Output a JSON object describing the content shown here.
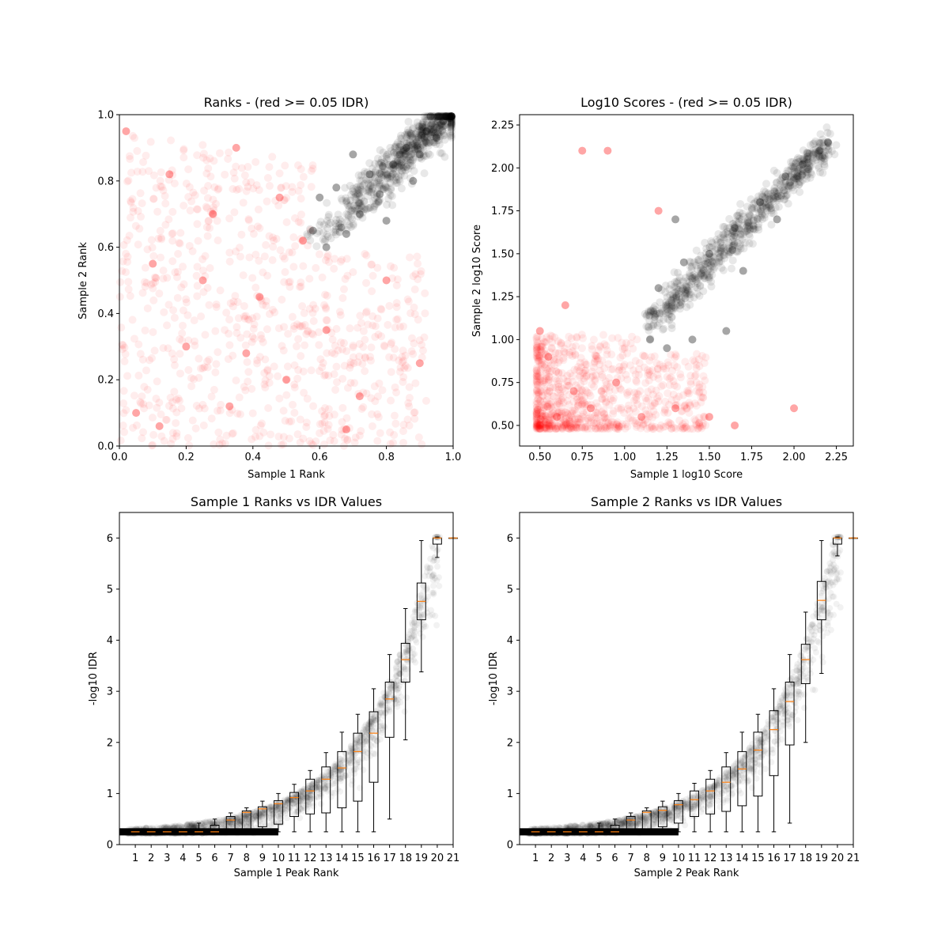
{
  "chart_data": [
    {
      "type": "scatter",
      "title": "Ranks - (red >= 0.05 IDR)",
      "xlabel": "Sample 1 Rank",
      "ylabel": "Sample 2 Rank",
      "xlim": [
        0,
        1
      ],
      "ylim": [
        0,
        1
      ],
      "x_ticks": [
        0.0,
        0.2,
        0.4,
        0.6,
        0.8,
        1.0
      ],
      "y_ticks": [
        0.0,
        0.2,
        0.4,
        0.6,
        0.8,
        1.0
      ],
      "x_tick_labels": [
        "0.0",
        "0.2",
        "0.4",
        "0.6",
        "0.8",
        "1.0"
      ],
      "y_tick_labels": [
        "0.0",
        "0.2",
        "0.4",
        "0.6",
        "0.8",
        "1.0"
      ],
      "colors": {
        "fail": "#ff0000",
        "pass": "#000000"
      },
      "series": [
        {
          "color": "#ff0000",
          "values": [
            [
              0.05,
              0.1
            ],
            [
              0.12,
              0.06
            ],
            [
              0.2,
              0.3
            ],
            [
              0.33,
              0.12
            ],
            [
              0.42,
              0.45
            ],
            [
              0.5,
              0.2
            ],
            [
              0.28,
              0.7
            ],
            [
              0.1,
              0.55
            ],
            [
              0.62,
              0.35
            ],
            [
              0.72,
              0.15
            ],
            [
              0.55,
              0.62
            ],
            [
              0.8,
              0.5
            ],
            [
              0.15,
              0.82
            ],
            [
              0.35,
              0.9
            ],
            [
              0.02,
              0.95
            ],
            [
              0.48,
              0.75
            ],
            [
              0.9,
              0.25
            ],
            [
              0.68,
              0.05
            ],
            [
              0.25,
              0.5
            ],
            [
              0.38,
              0.28
            ]
          ]
        },
        {
          "color": "#000000",
          "values": [
            [
              0.58,
              0.65
            ],
            [
              0.62,
              0.6
            ],
            [
              0.68,
              0.64
            ],
            [
              0.65,
              0.78
            ],
            [
              0.72,
              0.7
            ],
            [
              0.75,
              0.82
            ],
            [
              0.8,
              0.68
            ],
            [
              0.82,
              0.85
            ],
            [
              0.86,
              0.9
            ],
            [
              0.9,
              0.88
            ],
            [
              0.92,
              0.95
            ],
            [
              0.95,
              0.93
            ],
            [
              0.97,
              0.98
            ],
            [
              0.99,
              0.99
            ],
            [
              0.6,
              0.75
            ],
            [
              0.78,
              0.76
            ],
            [
              0.88,
              0.8
            ],
            [
              0.7,
              0.88
            ]
          ]
        }
      ]
    },
    {
      "type": "scatter",
      "title": "Log10 Scores - (red >= 0.05 IDR)",
      "xlabel": "Sample 1 log10 Score",
      "ylabel": "Sample 2 log10 Score",
      "xlim": [
        0.38,
        2.35
      ],
      "ylim": [
        0.38,
        2.31
      ],
      "x_ticks": [
        0.5,
        0.75,
        1.0,
        1.25,
        1.5,
        1.75,
        2.0,
        2.25
      ],
      "y_ticks": [
        0.5,
        0.75,
        1.0,
        1.25,
        1.5,
        1.75,
        2.0,
        2.25
      ],
      "x_tick_labels": [
        "0.50",
        "0.75",
        "1.00",
        "1.25",
        "1.50",
        "1.75",
        "2.00",
        "2.25"
      ],
      "y_tick_labels": [
        "0.50",
        "0.75",
        "1.00",
        "1.25",
        "1.50",
        "1.75",
        "2.00",
        "2.25"
      ],
      "colors": {
        "fail": "#ff0000",
        "pass": "#000000"
      },
      "series": [
        {
          "color": "#ff0000",
          "values": [
            [
              0.5,
              0.5
            ],
            [
              0.6,
              0.55
            ],
            [
              0.7,
              0.7
            ],
            [
              0.55,
              0.9
            ],
            [
              0.8,
              0.6
            ],
            [
              0.95,
              0.75
            ],
            [
              1.1,
              0.55
            ],
            [
              1.3,
              0.6
            ],
            [
              1.5,
              0.55
            ],
            [
              0.65,
              1.2
            ],
            [
              0.75,
              2.1
            ],
            [
              0.9,
              2.1
            ],
            [
              1.65,
              0.5
            ],
            [
              2.0,
              0.6
            ],
            [
              0.5,
              1.05
            ],
            [
              1.2,
              1.75
            ]
          ]
        },
        {
          "color": "#000000",
          "values": [
            [
              1.15,
              1.0
            ],
            [
              1.25,
              0.95
            ],
            [
              1.4,
              1.0
            ],
            [
              1.6,
              1.05
            ],
            [
              1.2,
              1.3
            ],
            [
              1.35,
              1.45
            ],
            [
              1.5,
              1.5
            ],
            [
              1.65,
              1.65
            ],
            [
              1.8,
              1.8
            ],
            [
              1.95,
              1.95
            ],
            [
              2.05,
              2.02
            ],
            [
              2.15,
              2.1
            ],
            [
              2.2,
              2.15
            ],
            [
              1.3,
              1.7
            ],
            [
              1.7,
              1.4
            ],
            [
              1.9,
              1.7
            ]
          ]
        }
      ]
    },
    {
      "type": "box",
      "title": "Sample 1 Ranks vs IDR Values",
      "xlabel": "Sample 1 Peak Rank",
      "ylabel": "-log10 IDR",
      "xlim": [
        0,
        21
      ],
      "ylim": [
        0,
        6.5
      ],
      "x_tick_labels": [
        "1",
        "2",
        "3",
        "4",
        "5",
        "6",
        "7",
        "8",
        "9",
        "10",
        "11",
        "12",
        "13",
        "14",
        "15",
        "16",
        "17",
        "18",
        "19",
        "20",
        "21"
      ],
      "y_ticks": [
        0,
        1,
        2,
        3,
        4,
        5,
        6
      ],
      "y_tick_labels": [
        "0",
        "1",
        "2",
        "3",
        "4",
        "5",
        "6"
      ],
      "boxes": [
        {
          "position": 1,
          "q1": 0.25,
          "median": 0.25,
          "q3": 0.25,
          "whisker_low": 0.25,
          "whisker_high": 0.25
        },
        {
          "position": 2,
          "q1": 0.25,
          "median": 0.25,
          "q3": 0.25,
          "whisker_low": 0.25,
          "whisker_high": 0.25
        },
        {
          "position": 3,
          "q1": 0.25,
          "median": 0.25,
          "q3": 0.25,
          "whisker_low": 0.25,
          "whisker_high": 0.25
        },
        {
          "position": 4,
          "q1": 0.25,
          "median": 0.25,
          "q3": 0.25,
          "whisker_low": 0.25,
          "whisker_high": 0.25
        },
        {
          "position": 5,
          "q1": 0.25,
          "median": 0.25,
          "q3": 0.3,
          "whisker_low": 0.25,
          "whisker_high": 0.42
        },
        {
          "position": 6,
          "q1": 0.25,
          "median": 0.25,
          "q3": 0.38,
          "whisker_low": 0.25,
          "whisker_high": 0.5
        },
        {
          "position": 7,
          "q1": 0.28,
          "median": 0.48,
          "q3": 0.55,
          "whisker_low": 0.25,
          "whisker_high": 0.62
        },
        {
          "position": 8,
          "q1": 0.3,
          "median": 0.63,
          "q3": 0.66,
          "whisker_low": 0.25,
          "whisker_high": 0.72
        },
        {
          "position": 9,
          "q1": 0.35,
          "median": 0.7,
          "q3": 0.74,
          "whisker_low": 0.25,
          "whisker_high": 0.85
        },
        {
          "position": 10,
          "q1": 0.4,
          "median": 0.8,
          "q3": 0.86,
          "whisker_low": 0.25,
          "whisker_high": 1.0
        },
        {
          "position": 11,
          "q1": 0.55,
          "median": 0.92,
          "q3": 1.02,
          "whisker_low": 0.25,
          "whisker_high": 1.18
        },
        {
          "position": 12,
          "q1": 0.6,
          "median": 1.05,
          "q3": 1.28,
          "whisker_low": 0.25,
          "whisker_high": 1.45
        },
        {
          "position": 13,
          "q1": 0.62,
          "median": 1.28,
          "q3": 1.52,
          "whisker_low": 0.25,
          "whisker_high": 1.8
        },
        {
          "position": 14,
          "q1": 0.72,
          "median": 1.5,
          "q3": 1.82,
          "whisker_low": 0.25,
          "whisker_high": 2.2
        },
        {
          "position": 15,
          "q1": 0.85,
          "median": 1.82,
          "q3": 2.18,
          "whisker_low": 0.25,
          "whisker_high": 2.55
        },
        {
          "position": 16,
          "q1": 1.22,
          "median": 2.18,
          "q3": 2.6,
          "whisker_low": 0.25,
          "whisker_high": 3.05
        },
        {
          "position": 17,
          "q1": 2.1,
          "median": 2.85,
          "q3": 3.18,
          "whisker_low": 0.5,
          "whisker_high": 3.72
        },
        {
          "position": 18,
          "q1": 3.18,
          "median": 3.62,
          "q3": 3.94,
          "whisker_low": 2.05,
          "whisker_high": 4.62
        },
        {
          "position": 19,
          "q1": 4.4,
          "median": 4.76,
          "q3": 5.12,
          "whisker_low": 3.38,
          "whisker_high": 5.95
        },
        {
          "position": 20,
          "q1": 5.88,
          "median": 6.0,
          "q3": 6.0,
          "whisker_low": 5.62,
          "whisker_high": 6.02
        },
        {
          "position": 21,
          "q1": 6.0,
          "median": 6.0,
          "q3": 6.0,
          "whisker_low": 6.0,
          "whisker_high": 6.0
        }
      ]
    },
    {
      "type": "box",
      "title": "Sample 2 Ranks vs IDR Values",
      "xlabel": "Sample 2 Peak Rank",
      "ylabel": "-log10 IDR",
      "xlim": [
        0,
        21
      ],
      "ylim": [
        0,
        6.5
      ],
      "x_tick_labels": [
        "1",
        "2",
        "3",
        "4",
        "5",
        "6",
        "7",
        "8",
        "9",
        "10",
        "11",
        "12",
        "13",
        "14",
        "15",
        "16",
        "17",
        "18",
        "19",
        "20",
        "21"
      ],
      "y_ticks": [
        0,
        1,
        2,
        3,
        4,
        5,
        6
      ],
      "y_tick_labels": [
        "0",
        "1",
        "2",
        "3",
        "4",
        "5",
        "6"
      ],
      "boxes": [
        {
          "position": 1,
          "q1": 0.25,
          "median": 0.25,
          "q3": 0.25,
          "whisker_low": 0.25,
          "whisker_high": 0.25
        },
        {
          "position": 2,
          "q1": 0.25,
          "median": 0.25,
          "q3": 0.25,
          "whisker_low": 0.25,
          "whisker_high": 0.25
        },
        {
          "position": 3,
          "q1": 0.25,
          "median": 0.25,
          "q3": 0.25,
          "whisker_low": 0.25,
          "whisker_high": 0.25
        },
        {
          "position": 4,
          "q1": 0.25,
          "median": 0.25,
          "q3": 0.25,
          "whisker_low": 0.25,
          "whisker_high": 0.25
        },
        {
          "position": 5,
          "q1": 0.25,
          "median": 0.25,
          "q3": 0.3,
          "whisker_low": 0.25,
          "whisker_high": 0.42
        },
        {
          "position": 6,
          "q1": 0.25,
          "median": 0.25,
          "q3": 0.38,
          "whisker_low": 0.25,
          "whisker_high": 0.5
        },
        {
          "position": 7,
          "q1": 0.28,
          "median": 0.48,
          "q3": 0.55,
          "whisker_low": 0.25,
          "whisker_high": 0.62
        },
        {
          "position": 8,
          "q1": 0.3,
          "median": 0.63,
          "q3": 0.66,
          "whisker_low": 0.25,
          "whisker_high": 0.72
        },
        {
          "position": 9,
          "q1": 0.35,
          "median": 0.67,
          "q3": 0.74,
          "whisker_low": 0.25,
          "whisker_high": 0.85
        },
        {
          "position": 10,
          "q1": 0.42,
          "median": 0.78,
          "q3": 0.86,
          "whisker_low": 0.25,
          "whisker_high": 1.0
        },
        {
          "position": 11,
          "q1": 0.55,
          "median": 0.88,
          "q3": 1.05,
          "whisker_low": 0.25,
          "whisker_high": 1.2
        },
        {
          "position": 12,
          "q1": 0.6,
          "median": 1.05,
          "q3": 1.28,
          "whisker_low": 0.25,
          "whisker_high": 1.45
        },
        {
          "position": 13,
          "q1": 0.65,
          "median": 1.22,
          "q3": 1.52,
          "whisker_low": 0.25,
          "whisker_high": 1.8
        },
        {
          "position": 14,
          "q1": 0.76,
          "median": 1.48,
          "q3": 1.82,
          "whisker_low": 0.25,
          "whisker_high": 2.2
        },
        {
          "position": 15,
          "q1": 0.95,
          "median": 1.85,
          "q3": 2.2,
          "whisker_low": 0.25,
          "whisker_high": 2.55
        },
        {
          "position": 16,
          "q1": 1.35,
          "median": 2.25,
          "q3": 2.62,
          "whisker_low": 0.25,
          "whisker_high": 3.05
        },
        {
          "position": 17,
          "q1": 1.95,
          "median": 2.8,
          "q3": 3.18,
          "whisker_low": 0.42,
          "whisker_high": 3.72
        },
        {
          "position": 18,
          "q1": 3.15,
          "median": 3.62,
          "q3": 3.92,
          "whisker_low": 2.0,
          "whisker_high": 4.55
        },
        {
          "position": 19,
          "q1": 4.4,
          "median": 4.78,
          "q3": 5.15,
          "whisker_low": 3.35,
          "whisker_high": 5.95
        },
        {
          "position": 20,
          "q1": 5.88,
          "median": 6.0,
          "q3": 6.0,
          "whisker_low": 5.65,
          "whisker_high": 6.02
        },
        {
          "position": 21,
          "q1": 6.0,
          "median": 6.0,
          "q3": 6.0,
          "whisker_low": 6.0,
          "whisker_high": 6.0
        }
      ]
    }
  ]
}
